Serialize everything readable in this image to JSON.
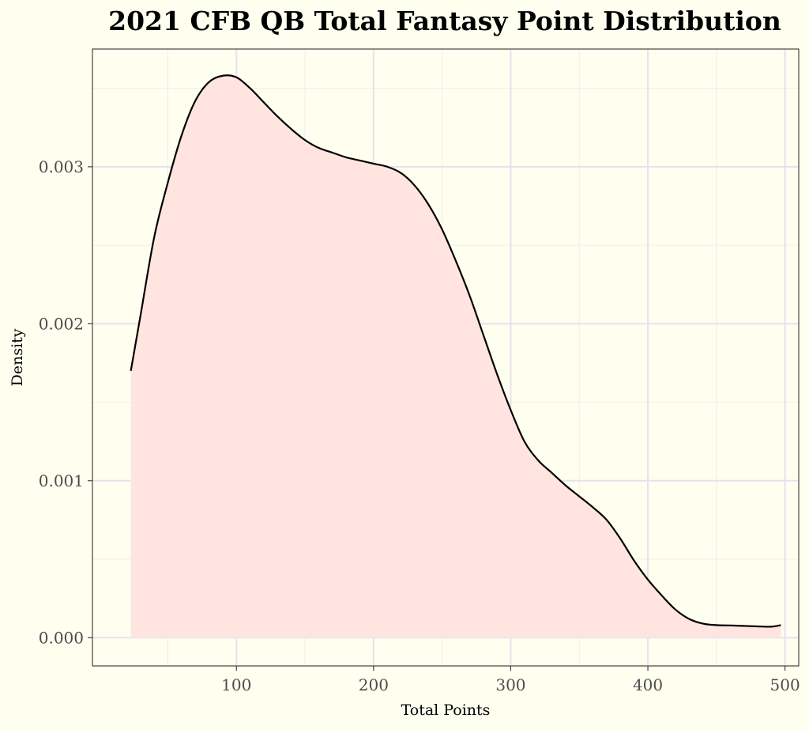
{
  "chart_data": {
    "type": "area",
    "title": "2021 CFB QB Total Fantasy Point Distribution",
    "xlabel": "Total Points",
    "ylabel": "Density",
    "xlim": [
      -5,
      510
    ],
    "ylim": [
      -0.00018,
      0.00375
    ],
    "x_ticks": [
      100,
      200,
      300,
      400,
      500
    ],
    "x_tick_labels": [
      "100",
      "200",
      "300",
      "400",
      "500"
    ],
    "y_ticks": [
      0.0,
      0.001,
      0.002,
      0.003
    ],
    "y_tick_labels": [
      "0.000",
      "0.001",
      "0.002",
      "0.003"
    ],
    "x_minor_ticks": [
      50,
      150,
      250,
      350,
      450
    ],
    "y_minor_ticks": [
      0.0005,
      0.0015,
      0.0025,
      0.0035
    ],
    "grid": true,
    "series": [
      {
        "name": "Density",
        "x": [
          23,
          30,
          40,
          50,
          60,
          70,
          80,
          90,
          100,
          110,
          120,
          130,
          140,
          150,
          160,
          170,
          180,
          190,
          200,
          210,
          220,
          230,
          240,
          250,
          260,
          270,
          280,
          290,
          300,
          310,
          320,
          330,
          340,
          350,
          360,
          370,
          380,
          390,
          400,
          410,
          420,
          430,
          440,
          450,
          460,
          470,
          480,
          490,
          497
        ],
        "y": [
          0.0017,
          0.00205,
          0.00255,
          0.0029,
          0.0032,
          0.00342,
          0.00354,
          0.00358,
          0.00357,
          0.0035,
          0.00341,
          0.00332,
          0.00324,
          0.00317,
          0.00312,
          0.00309,
          0.00306,
          0.00304,
          0.00302,
          0.003,
          0.00296,
          0.00288,
          0.00276,
          0.0026,
          0.0024,
          0.00218,
          0.00193,
          0.00168,
          0.00145,
          0.00125,
          0.00113,
          0.00105,
          0.00097,
          0.0009,
          0.00083,
          0.00075,
          0.00063,
          0.00049,
          0.00037,
          0.00027,
          0.00018,
          0.00012,
          9e-05,
          8e-05,
          7.8e-05,
          7.5e-05,
          7.2e-05,
          7e-05,
          8e-05
        ]
      }
    ],
    "colors": {
      "fill": "#ffe4e0",
      "line": "#000000",
      "panel_background": "#fffff0",
      "panel_border": "#333333",
      "grid_major": "#e6e1ec",
      "grid_minor": "#efecee",
      "tick_text": "#4d4d4d"
    }
  }
}
